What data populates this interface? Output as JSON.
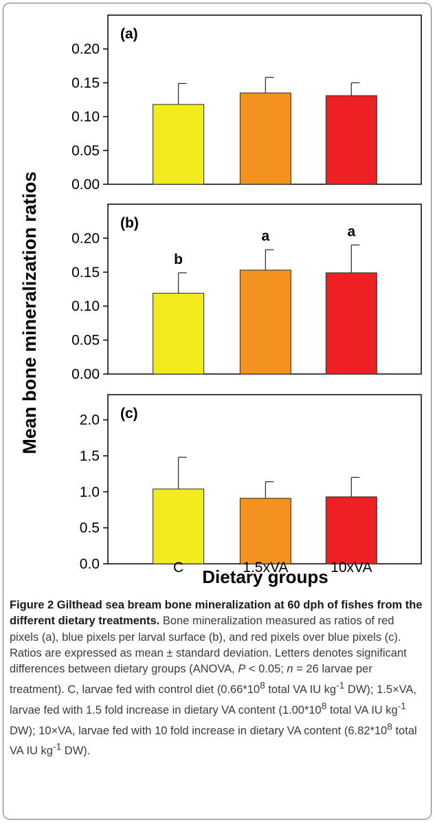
{
  "chart_data": {
    "type": "bar",
    "ylabel": "Mean bone mineralization ratios",
    "xlabel": "Dietary groups",
    "categories": [
      "C",
      "1.5xVA",
      "10xVA"
    ],
    "colors": [
      "#f2ec1c",
      "#f3921f",
      "#ee2024"
    ],
    "panels": [
      {
        "label": "(a)",
        "ylim": [
          0,
          0.25
        ],
        "yticks": [
          "0.00",
          "0.05",
          "0.10",
          "0.15",
          "0.20"
        ],
        "values": [
          0.118,
          0.135,
          0.131
        ],
        "errors": [
          0.031,
          0.023,
          0.019
        ],
        "letters": [
          "",
          "",
          ""
        ]
      },
      {
        "label": "(b)",
        "ylim": [
          0,
          0.25
        ],
        "yticks": [
          "0.00",
          "0.05",
          "0.10",
          "0.15",
          "0.20"
        ],
        "values": [
          0.119,
          0.153,
          0.149
        ],
        "errors": [
          0.03,
          0.03,
          0.041
        ],
        "letters": [
          "b",
          "a",
          "a"
        ]
      },
      {
        "label": "(c)",
        "ylim": [
          0,
          2.35
        ],
        "yticks": [
          "0.0",
          "0.5",
          "1.0",
          "1.5",
          "2.0"
        ],
        "values": [
          1.04,
          0.91,
          0.93
        ],
        "errors": [
          0.44,
          0.23,
          0.27
        ],
        "letters": [
          "",
          "",
          ""
        ]
      }
    ]
  },
  "caption": {
    "title": "Figure 2 Gilthead sea bream bone mineralization at 60 dph of fishes from the different dietary treatments",
    "body": "Bone mineralization measured as ratios of red pixels (a), blue pixels per larval surface (b), and red pixels over blue pixels (c). Ratios are expressed as mean ± standard deviation. Letters denotes significant differences between dietary groups (ANOVA, P < 0.05; n = 26 larvae per treatment). C, larvae fed with control diet (0.66*10^8 total VA IU kg^-1 DW); 1.5×VA, larvae fed with 1.5 fold increase in dietary VA content (1.00*10^8 total VA IU kg^-1 DW); 10×VA, larvae fed with 10 fold increase in dietary VA content (6.82*10^8 total VA IU kg^-1 DW)."
  }
}
